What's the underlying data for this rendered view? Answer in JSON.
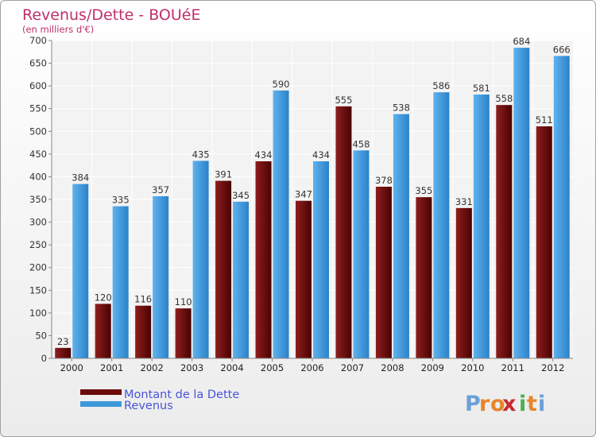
{
  "chart_data": {
    "type": "bar",
    "title": "Revenus/Dette - BOUéE",
    "subtitle": "(en milliers d'€)",
    "categories": [
      "2000",
      "2001",
      "2002",
      "2003",
      "2004",
      "2005",
      "2006",
      "2007",
      "2008",
      "2009",
      "2010",
      "2011",
      "2012"
    ],
    "series": [
      {
        "name": "Montant de la Dette",
        "color": "#6b0a0a",
        "values": [
          23,
          120,
          116,
          110,
          391,
          434,
          347,
          555,
          378,
          355,
          331,
          558,
          511
        ]
      },
      {
        "name": "Revenus",
        "color": "#3d98d9",
        "values": [
          384,
          335,
          357,
          435,
          345,
          590,
          434,
          458,
          538,
          586,
          581,
          684,
          666
        ]
      }
    ],
    "yticks": [
      0,
      50,
      100,
      150,
      200,
      250,
      300,
      350,
      400,
      450,
      500,
      550,
      600,
      650,
      700
    ],
    "ylim": [
      0,
      700
    ],
    "grid": true,
    "legend": "bottom-left"
  },
  "brand": {
    "letters": [
      "P",
      "r",
      "o",
      "x",
      "i",
      "t",
      "i"
    ],
    "colors": [
      "#6aa0d8",
      "#e7862b",
      "#e7862b",
      "#c8282f",
      "#4caf50",
      "#e7862b",
      "#6aa0d8"
    ]
  }
}
